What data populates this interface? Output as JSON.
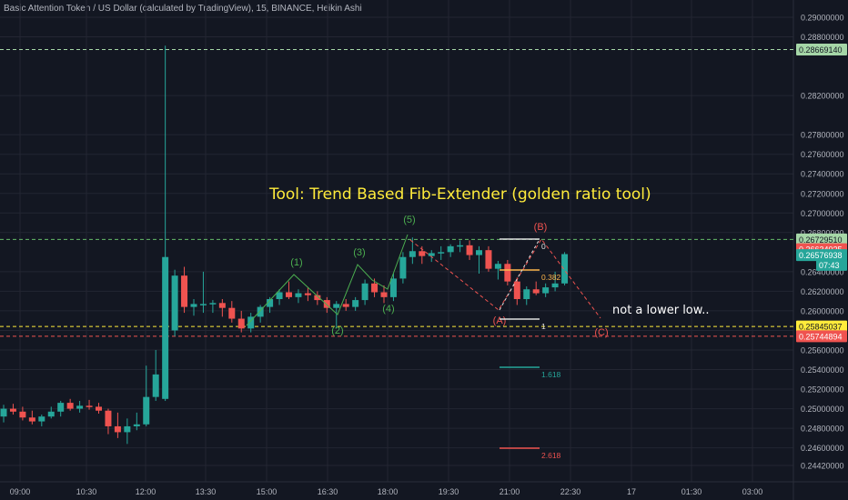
{
  "header": {
    "title": "Basic Attention Token / US Dollar (calculated by TradingView), 15, BINANCE, Heikin Ashi"
  },
  "colors": {
    "background": "#131722",
    "grid": "#232632",
    "up": "#26a69a",
    "down": "#ef5350",
    "text": "#b2b5be",
    "wave_green": "#4caf50",
    "wave_red": "#ef5350",
    "annotation_yellow": "#ffeb3b",
    "axis_bg": "#131722"
  },
  "price_axis": {
    "ticks": [
      "0.29000000",
      "0.28800000",
      "0.28200000",
      "0.27800000",
      "0.27600000",
      "0.27400000",
      "0.27200000",
      "0.27000000",
      "0.26800000",
      "0.26400000",
      "0.26200000",
      "0.26000000",
      "0.25800000",
      "0.25600000",
      "0.25400000",
      "0.25200000",
      "0.25000000",
      "0.24800000",
      "0.24600000",
      "0.24420000"
    ],
    "tick_values": [
      0.29,
      0.288,
      0.282,
      0.278,
      0.276,
      0.274,
      0.272,
      0.27,
      0.268,
      0.264,
      0.262,
      0.26,
      0.258,
      0.256,
      0.254,
      0.252,
      0.25,
      0.248,
      0.246,
      0.2442
    ],
    "badges": [
      {
        "label": "0.28669140",
        "value": 0.2867,
        "color": "#a5d6a7",
        "text_color": "#131722"
      },
      {
        "label": "0.26729510",
        "value": 0.2673,
        "color": "#a5d6a7",
        "text_color": "#131722"
      },
      {
        "label": "0.26634025",
        "value": 0.2663,
        "color": "#ef5350",
        "text_color": "#ffffff"
      },
      {
        "label": "0.26576938",
        "value": 0.2657,
        "color": "#26a69a",
        "text_color": "#ffffff"
      },
      {
        "label": "07:43",
        "value": 0.2647,
        "color": "#26a69a",
        "text_color": "#ffffff"
      },
      {
        "label": "0.25845037",
        "value": 0.2584,
        "color": "#ffeb3b",
        "text_color": "#131722"
      },
      {
        "label": "0.25744894",
        "value": 0.2574,
        "color": "#ef5350",
        "text_color": "#ffffff"
      }
    ]
  },
  "time_axis": {
    "ticks": [
      "09:00",
      "10:30",
      "12:00",
      "13:30",
      "15:00",
      "16:30",
      "18:00",
      "19:30",
      "21:00",
      "22:30",
      "17",
      "01:30",
      "03:00"
    ]
  },
  "annotations": {
    "title": "Tool: Trend Based Fib-Extender (golden ratio tool)",
    "note": "not a lower low..",
    "waves": [
      "(1)",
      "(2)",
      "(3)",
      "(4)",
      "(5)"
    ],
    "corrective": [
      "(A)",
      "(B)",
      "(C)"
    ],
    "fib_labels": [
      "0",
      "0.382",
      "1",
      "1.618",
      "2.618"
    ]
  },
  "chart_data": {
    "type": "candlestick",
    "style": "Heikin Ashi",
    "interval": "15",
    "exchange": "BINANCE",
    "symbol": "Basic Attention Token / US Dollar",
    "ylim": [
      0.2435,
      0.2915
    ],
    "grid": true,
    "horizontal_lines": [
      0.2867,
      0.2673,
      0.2584,
      0.2574
    ],
    "candles": [
      {
        "o": 0.2492,
        "h": 0.2504,
        "l": 0.2486,
        "c": 0.25
      },
      {
        "o": 0.25,
        "h": 0.2505,
        "l": 0.2494,
        "c": 0.2497
      },
      {
        "o": 0.2497,
        "h": 0.2502,
        "l": 0.2488,
        "c": 0.2491
      },
      {
        "o": 0.2491,
        "h": 0.2498,
        "l": 0.2484,
        "c": 0.2487
      },
      {
        "o": 0.2487,
        "h": 0.2494,
        "l": 0.2482,
        "c": 0.2492
      },
      {
        "o": 0.2492,
        "h": 0.2502,
        "l": 0.249,
        "c": 0.2497
      },
      {
        "o": 0.2497,
        "h": 0.2508,
        "l": 0.2492,
        "c": 0.2506
      },
      {
        "o": 0.2506,
        "h": 0.251,
        "l": 0.2498,
        "c": 0.25
      },
      {
        "o": 0.25,
        "h": 0.2508,
        "l": 0.2496,
        "c": 0.2503
      },
      {
        "o": 0.2503,
        "h": 0.2509,
        "l": 0.2499,
        "c": 0.2502
      },
      {
        "o": 0.2502,
        "h": 0.2506,
        "l": 0.2495,
        "c": 0.2498
      },
      {
        "o": 0.2498,
        "h": 0.25,
        "l": 0.2474,
        "c": 0.2482
      },
      {
        "o": 0.2482,
        "h": 0.2496,
        "l": 0.247,
        "c": 0.2476
      },
      {
        "o": 0.2476,
        "h": 0.249,
        "l": 0.2464,
        "c": 0.2482
      },
      {
        "o": 0.2482,
        "h": 0.2496,
        "l": 0.2478,
        "c": 0.2484
      },
      {
        "o": 0.2484,
        "h": 0.2544,
        "l": 0.2482,
        "c": 0.2512
      },
      {
        "o": 0.2512,
        "h": 0.256,
        "l": 0.2508,
        "c": 0.2535
      },
      {
        "o": 0.251,
        "h": 0.2871,
        "l": 0.2508,
        "c": 0.2655
      },
      {
        "o": 0.258,
        "h": 0.2642,
        "l": 0.2574,
        "c": 0.2636
      },
      {
        "o": 0.2636,
        "h": 0.2645,
        "l": 0.2598,
        "c": 0.2604
      },
      {
        "o": 0.2604,
        "h": 0.2612,
        "l": 0.2595,
        "c": 0.2607
      },
      {
        "o": 0.2607,
        "h": 0.264,
        "l": 0.2598,
        "c": 0.2607
      },
      {
        "o": 0.2607,
        "h": 0.2611,
        "l": 0.2598,
        "c": 0.2608
      },
      {
        "o": 0.2608,
        "h": 0.2612,
        "l": 0.2594,
        "c": 0.2603
      },
      {
        "o": 0.2603,
        "h": 0.261,
        "l": 0.2588,
        "c": 0.2592
      },
      {
        "o": 0.2592,
        "h": 0.26,
        "l": 0.2578,
        "c": 0.2582
      },
      {
        "o": 0.2582,
        "h": 0.2598,
        "l": 0.2578,
        "c": 0.2594
      },
      {
        "o": 0.2594,
        "h": 0.2606,
        "l": 0.2588,
        "c": 0.2604
      },
      {
        "o": 0.2604,
        "h": 0.2614,
        "l": 0.2598,
        "c": 0.2612
      },
      {
        "o": 0.2612,
        "h": 0.2622,
        "l": 0.2606,
        "c": 0.2619
      },
      {
        "o": 0.2619,
        "h": 0.263,
        "l": 0.2612,
        "c": 0.2614
      },
      {
        "o": 0.2614,
        "h": 0.2622,
        "l": 0.2608,
        "c": 0.2618
      },
      {
        "o": 0.2618,
        "h": 0.2624,
        "l": 0.261,
        "c": 0.2616
      },
      {
        "o": 0.2616,
        "h": 0.262,
        "l": 0.2606,
        "c": 0.2611
      },
      {
        "o": 0.2611,
        "h": 0.2614,
        "l": 0.2598,
        "c": 0.2603
      },
      {
        "o": 0.2603,
        "h": 0.261,
        "l": 0.2582,
        "c": 0.2607
      },
      {
        "o": 0.2607,
        "h": 0.2612,
        "l": 0.26,
        "c": 0.2604
      },
      {
        "o": 0.2604,
        "h": 0.2614,
        "l": 0.26,
        "c": 0.2611
      },
      {
        "o": 0.2611,
        "h": 0.2632,
        "l": 0.2606,
        "c": 0.2628
      },
      {
        "o": 0.2628,
        "h": 0.2633,
        "l": 0.2614,
        "c": 0.2619
      },
      {
        "o": 0.2619,
        "h": 0.2626,
        "l": 0.2608,
        "c": 0.2614
      },
      {
        "o": 0.2614,
        "h": 0.2638,
        "l": 0.261,
        "c": 0.2633
      },
      {
        "o": 0.2633,
        "h": 0.266,
        "l": 0.2628,
        "c": 0.2655
      },
      {
        "o": 0.2655,
        "h": 0.2675,
        "l": 0.2648,
        "c": 0.2661
      },
      {
        "o": 0.2661,
        "h": 0.2666,
        "l": 0.2648,
        "c": 0.2656
      },
      {
        "o": 0.2656,
        "h": 0.2662,
        "l": 0.265,
        "c": 0.2659
      },
      {
        "o": 0.2659,
        "h": 0.2666,
        "l": 0.2652,
        "c": 0.266
      },
      {
        "o": 0.266,
        "h": 0.2668,
        "l": 0.2655,
        "c": 0.2666
      },
      {
        "o": 0.2666,
        "h": 0.2672,
        "l": 0.266,
        "c": 0.2667
      },
      {
        "o": 0.2667,
        "h": 0.2672,
        "l": 0.2652,
        "c": 0.2657
      },
      {
        "o": 0.2657,
        "h": 0.2666,
        "l": 0.2638,
        "c": 0.2662
      },
      {
        "o": 0.2662,
        "h": 0.2666,
        "l": 0.264,
        "c": 0.2643
      },
      {
        "o": 0.2643,
        "h": 0.2651,
        "l": 0.2632,
        "c": 0.2648
      },
      {
        "o": 0.2648,
        "h": 0.2652,
        "l": 0.2626,
        "c": 0.263
      },
      {
        "o": 0.263,
        "h": 0.2634,
        "l": 0.2606,
        "c": 0.2612
      },
      {
        "o": 0.2612,
        "h": 0.2625,
        "l": 0.2606,
        "c": 0.2622
      },
      {
        "o": 0.2622,
        "h": 0.263,
        "l": 0.2616,
        "c": 0.2618
      },
      {
        "o": 0.2618,
        "h": 0.2628,
        "l": 0.2614,
        "c": 0.2624
      },
      {
        "o": 0.2624,
        "h": 0.264,
        "l": 0.262,
        "c": 0.2628
      },
      {
        "o": 0.2628,
        "h": 0.266,
        "l": 0.2626,
        "c": 0.2658
      }
    ]
  }
}
